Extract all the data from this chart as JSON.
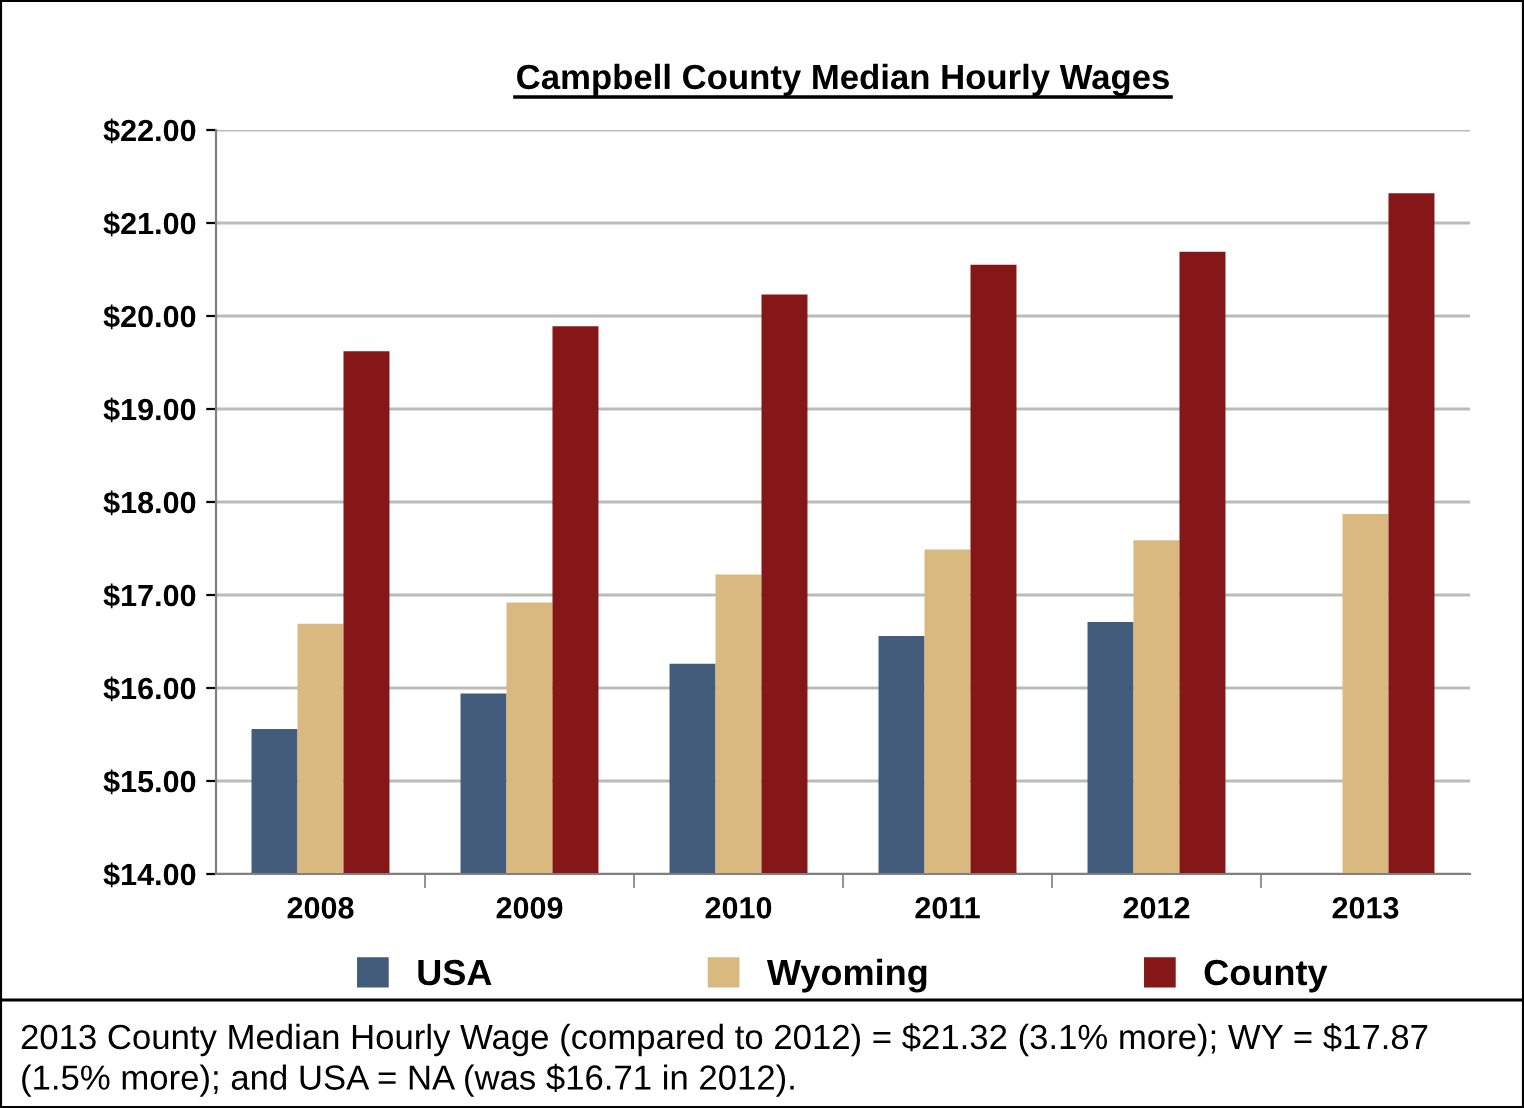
{
  "chart_data": {
    "type": "bar",
    "title": "Campbell County Median Hourly Wages",
    "categories": [
      "2008",
      "2009",
      "2010",
      "2011",
      "2012",
      "2013"
    ],
    "series": [
      {
        "name": "USA",
        "color": "#435c7c",
        "values": [
          15.56,
          15.94,
          16.26,
          16.56,
          16.71,
          null
        ]
      },
      {
        "name": "Wyoming",
        "color": "#d9b97f",
        "values": [
          16.69,
          16.92,
          17.22,
          17.49,
          17.59,
          17.87
        ]
      },
      {
        "name": "County",
        "color": "#861718",
        "values": [
          19.62,
          19.89,
          20.23,
          20.55,
          20.69,
          21.32
        ]
      }
    ],
    "ylim": [
      14,
      22
    ],
    "yticks": [
      {
        "value": 14,
        "label": "$14.00"
      },
      {
        "value": 15,
        "label": "$15.00"
      },
      {
        "value": 16,
        "label": "$16.00"
      },
      {
        "value": 17,
        "label": "$17.00"
      },
      {
        "value": 18,
        "label": "$18.00"
      },
      {
        "value": 19,
        "label": "$19.00"
      },
      {
        "value": 20,
        "label": "$20.00"
      },
      {
        "value": 21,
        "label": "$21.00"
      },
      {
        "value": 22,
        "label": "$22.00"
      }
    ],
    "grid": "y",
    "legend": "bottom",
    "annotations": [
      "2013 County Median Hourly Wage (compared to 2012) = $21.32 (3.1% more); WY = $17.87 (1.5% more); and USA = NA (was $16.71 in 2012)."
    ]
  }
}
